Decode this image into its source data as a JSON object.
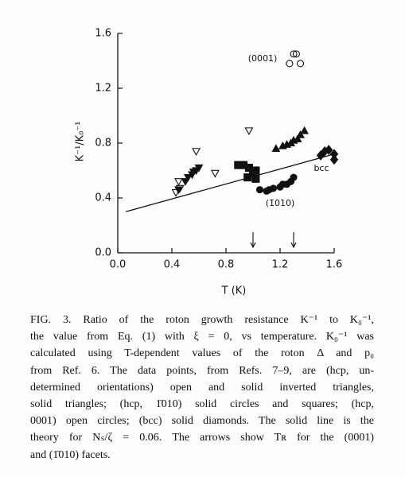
{
  "chart_data": {
    "type": "scatter",
    "xlabel": "T (K)",
    "ylabel": "K⁻¹/K₀⁻¹",
    "xlim": [
      0,
      1.6
    ],
    "ylim": [
      0,
      1.6
    ],
    "xticks": [
      {
        "value": 0,
        "label": "0.0"
      },
      0.4,
      0.8,
      1.2,
      1.6
    ],
    "yticks": [
      {
        "value": 0,
        "label": "0.0"
      },
      0.4,
      0.8,
      1.2,
      1.6
    ],
    "color": "#111111",
    "series": [
      {
        "marker": "open-triangle-down",
        "x": [
          0.43,
          0.46,
          0.45,
          0.58,
          0.72,
          0.97
        ],
        "values": [
          0.44,
          0.47,
          0.52,
          0.74,
          0.58,
          0.89
        ]
      },
      {
        "marker": "filled-triangle-down",
        "x": [
          0.45,
          0.5,
          0.52,
          0.55,
          0.58,
          0.6,
          0.56
        ],
        "values": [
          0.46,
          0.52,
          0.55,
          0.57,
          0.6,
          0.62,
          0.59
        ]
      },
      {
        "marker": "filled-square",
        "x": [
          0.89,
          0.93,
          0.97,
          1.0,
          1.02,
          1.02,
          0.96
        ],
        "values": [
          0.64,
          0.64,
          0.62,
          0.58,
          0.6,
          0.54,
          0.55
        ]
      },
      {
        "marker": "filled-circle",
        "x": [
          1.05,
          1.1,
          1.15,
          1.2,
          1.25,
          1.28,
          1.3,
          1.22,
          1.12
        ],
        "values": [
          0.46,
          0.45,
          0.47,
          0.48,
          0.5,
          0.52,
          0.55,
          0.5,
          0.46
        ]
      },
      {
        "marker": "filled-triangle-up",
        "x": [
          1.17,
          1.22,
          1.25,
          1.3,
          1.35,
          1.38,
          1.33,
          1.28
        ],
        "values": [
          0.76,
          0.78,
          0.79,
          0.82,
          0.86,
          0.89,
          0.83,
          0.8
        ]
      },
      {
        "marker": "open-circle",
        "x": [
          1.3,
          1.32,
          1.27,
          1.35
        ],
        "values": [
          1.45,
          1.45,
          1.38,
          1.38
        ]
      },
      {
        "marker": "filled-diamond",
        "x": [
          1.5,
          1.53,
          1.56,
          1.6,
          1.6
        ],
        "values": [
          0.71,
          0.74,
          0.75,
          0.72,
          0.68
        ]
      },
      {
        "type": "line",
        "x": [
          0.06,
          1.6
        ],
        "values": [
          0.3,
          0.72
        ]
      }
    ],
    "arrows_x": [
      1.0,
      1.3
    ],
    "annotations": [
      "(0001)",
      "(1̄010)",
      "bcc"
    ]
  },
  "caption": {
    "lines": [
      "FIG. 3. Ratio of the roton growth resistance K⁻¹ to K₀⁻¹,",
      "the value from Eq. (1) with ξ = 0, vs temperature. K₀⁻¹ was",
      "calculated using T-dependent values of the roton Δ and p₀",
      "from Ref. 6. The data points, from Refs. 7–9, are (hcp, un-",
      "determined orientations) open and solid inverted triangles,",
      "solid triangles; (hcp, 1̄010) solid circles and squares; (hcp,",
      "0001) open circles; (bcc) solid diamonds. The solid line is the",
      "theory for Nₛ/ζ = 0.06. The arrows show Tʀ for the (0001)",
      "and (1̄010) facets."
    ]
  }
}
